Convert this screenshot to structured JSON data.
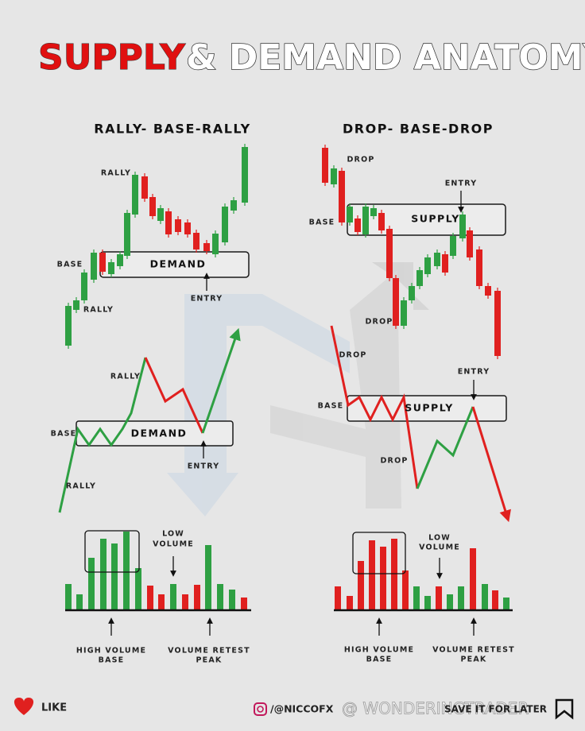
{
  "title": {
    "highlight": "SUPPLY",
    "rest": "& DEMAND ANATOMY"
  },
  "left": {
    "heading": "RALLY- BASE-RALLY",
    "candles": {
      "rally_top": "RALLY",
      "base": "BASE",
      "zone": "DEMAND",
      "entry": "ENTRY",
      "rally_bottom": "RALLY"
    },
    "line": {
      "rally_top": "RALLY",
      "base": "BASE",
      "zone": "DEMAND",
      "entry": "ENTRY",
      "rally_bottom": "RALLY"
    },
    "volume": {
      "low": [
        "LOW",
        "VOLUME"
      ],
      "high": [
        "HIGH VOLUME",
        "BASE"
      ],
      "retest": [
        "VOLUME RETEST",
        "PEAK"
      ]
    }
  },
  "right": {
    "heading": "DROP- BASE-DROP",
    "candles": {
      "drop_top": "DROP",
      "entry": "ENTRY",
      "zone": "SUPPLY",
      "base": "BASE",
      "drop_bottom": "DROP"
    },
    "line": {
      "drop_top": "DROP",
      "entry": "ENTRY",
      "base": "BASE",
      "zone": "SUPPLY",
      "drop_bottom": "DROP"
    },
    "volume": {
      "low": [
        "LOW",
        "VOLUME"
      ],
      "high": [
        "HIGH VOLUME",
        "BASE"
      ],
      "retest": [
        "VOLUME RETEST",
        "PEAK"
      ]
    }
  },
  "footer": {
    "like": "LIKE",
    "handle": "/@NICCOFX",
    "watermark": "@ WONDERINGTRADER",
    "save": "SAVE IT FOR LATER"
  }
}
